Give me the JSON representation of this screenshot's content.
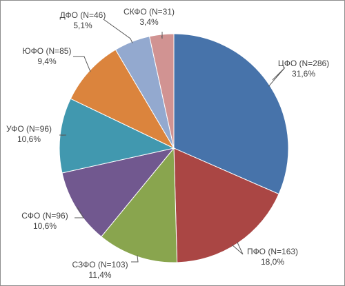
{
  "chart_data": {
    "type": "pie",
    "title": "",
    "start_angle_deg": 0,
    "direction": "clockwise",
    "slices": [
      {
        "label": "ЦФО (N=286)",
        "value": 286,
        "percent_label": "31,6%",
        "color": "#4773aa"
      },
      {
        "label": "ПФО (N=163)",
        "value": 163,
        "percent_label": "18,0%",
        "color": "#aa4644"
      },
      {
        "label": "СЗФО (N=103)",
        "value": 103,
        "percent_label": "11,4%",
        "color": "#89a54e"
      },
      {
        "label": "СФО (N=96)",
        "value": 96,
        "percent_label": "10,6%",
        "color": "#71588f"
      },
      {
        "label": "УФО (N=96)",
        "value": 96,
        "percent_label": "10,6%",
        "color": "#4198af"
      },
      {
        "label": "ЮФО (N=85)",
        "value": 85,
        "percent_label": "9,4%",
        "color": "#db843d"
      },
      {
        "label": "ДФО (N=46)",
        "value": 46,
        "percent_label": "5,1%",
        "color": "#93a9cf"
      },
      {
        "label": "СКФО (N=31)",
        "value": 31,
        "percent_label": "3,4%",
        "color": "#d19392"
      }
    ]
  }
}
